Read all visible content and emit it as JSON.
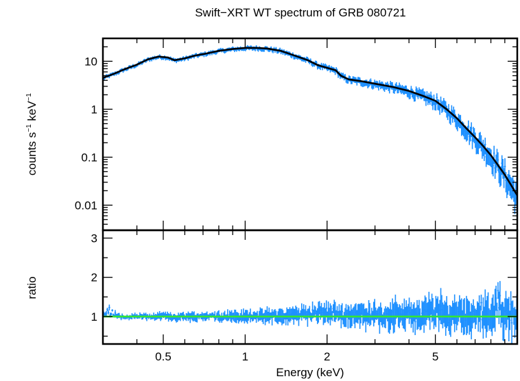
{
  "chart_data": [
    {
      "type": "line",
      "title": "Swift−XRT WT spectrum of GRB 080721",
      "xlabel": "Energy (keV)",
      "ylabel_parts": [
        "counts s",
        "−1",
        " keV",
        "−1"
      ],
      "xscale": "log",
      "yscale": "log",
      "xlim": [
        0.3,
        10
      ],
      "ylim": [
        0.003,
        30
      ],
      "xticks": [
        0.5,
        1,
        2,
        5
      ],
      "xtick_labels": [
        "0.5",
        "1",
        "2",
        "5"
      ],
      "yticks": [
        10,
        1,
        0.1,
        0.01
      ],
      "ytick_labels": [
        "10",
        "1",
        "0.1",
        "0.01"
      ],
      "grid": false,
      "series": [
        {
          "kind": "data",
          "color": "#1e90ff",
          "x": [
            0.3,
            0.33,
            0.36,
            0.4,
            0.44,
            0.48,
            0.52,
            0.55,
            0.6,
            0.65,
            0.72,
            0.8,
            0.9,
            1.0,
            1.1,
            1.2,
            1.35,
            1.5,
            1.7,
            1.85,
            2.0,
            2.15,
            2.25,
            2.4,
            2.7,
            3.0,
            3.5,
            4.0,
            4.5,
            5.0,
            5.5,
            6.0,
            6.5,
            7.0,
            7.5,
            8.0,
            8.5,
            9.0,
            9.5,
            10.0
          ],
          "y": [
            4.5,
            5.5,
            6.8,
            8.5,
            11,
            12.5,
            12,
            10.5,
            11.5,
            13,
            14.5,
            16.5,
            18,
            19,
            19,
            18.5,
            16.5,
            13.5,
            10.5,
            8.3,
            7.3,
            6.5,
            5.0,
            4.2,
            3.8,
            3.4,
            2.9,
            2.4,
            1.9,
            1.5,
            1.0,
            0.65,
            0.4,
            0.26,
            0.17,
            0.11,
            0.068,
            0.043,
            0.026,
            0.016
          ]
        },
        {
          "kind": "model",
          "color": "#000000",
          "x": [
            0.3,
            0.33,
            0.36,
            0.4,
            0.44,
            0.48,
            0.52,
            0.55,
            0.6,
            0.65,
            0.72,
            0.8,
            0.9,
            1.0,
            1.1,
            1.2,
            1.35,
            1.5,
            1.7,
            1.85,
            2.0,
            2.15,
            2.25,
            2.4,
            2.7,
            3.0,
            3.5,
            4.0,
            4.5,
            5.0,
            5.5,
            6.0,
            6.5,
            7.0,
            7.5,
            8.0,
            8.5,
            9.0,
            9.5,
            10.0
          ],
          "y": [
            4.5,
            5.5,
            6.8,
            8.5,
            11,
            12.5,
            12,
            10.5,
            11.5,
            13,
            14.5,
            16.5,
            18,
            19,
            19,
            18.5,
            16.5,
            13.5,
            10.5,
            8.3,
            7.3,
            6.5,
            5.0,
            4.2,
            3.8,
            3.4,
            2.9,
            2.4,
            1.9,
            1.5,
            1.0,
            0.65,
            0.4,
            0.26,
            0.17,
            0.11,
            0.068,
            0.043,
            0.026,
            0.016
          ]
        }
      ]
    },
    {
      "type": "line",
      "xlabel": "Energy (keV)",
      "ylabel": "ratio",
      "xscale": "log",
      "yscale": "linear",
      "xlim": [
        0.3,
        10
      ],
      "ylim": [
        0.3,
        3.2
      ],
      "yticks": [
        1,
        2,
        3
      ],
      "ytick_labels": [
        "1",
        "2",
        "3"
      ],
      "grid": false,
      "series": [
        {
          "kind": "data",
          "color": "#1e90ff",
          "x": [
            0.3,
            0.32,
            0.35,
            0.38,
            0.42,
            0.46,
            0.5,
            0.55,
            0.6,
            0.66,
            0.72,
            0.8,
            0.88,
            0.96,
            1.05,
            1.15,
            1.26,
            1.38,
            1.5,
            1.65,
            1.8,
            2.0,
            2.2,
            2.4,
            2.6,
            2.8,
            3.0,
            3.3,
            3.6,
            4.0,
            4.4,
            4.8,
            5.2,
            5.6,
            6.0,
            6.5,
            7.0,
            7.5,
            8.0,
            8.5,
            9.0,
            9.5,
            10.0
          ],
          "y": [
            1.1,
            1.25,
            0.95,
            1.0,
            1.02,
            0.97,
            1.04,
            0.96,
            1.01,
            0.98,
            1.03,
            0.99,
            1.02,
            0.98,
            1.01,
            1.0,
            1.03,
            1.0,
            1.08,
            1.12,
            1.15,
            1.18,
            1.1,
            1.05,
            1.2,
            1.0,
            1.25,
            0.9,
            1.15,
            1.1,
            0.95,
            1.3,
            1.2,
            0.9,
            1.25,
            1.1,
            1.0,
            1.3,
            0.9,
            1.6,
            0.85,
            1.4,
            0.8
          ]
        },
        {
          "kind": "model",
          "color": "#32e632",
          "x": [
            0.3,
            10
          ],
          "y": [
            1,
            1
          ]
        }
      ]
    }
  ]
}
